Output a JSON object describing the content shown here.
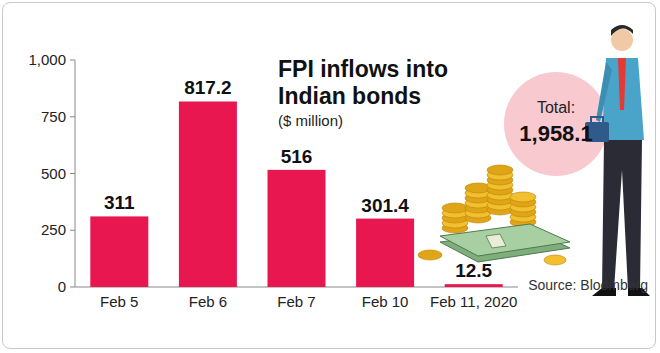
{
  "chart_data": {
    "type": "bar",
    "title": "FPI inflows into Indian bonds",
    "subtitle": "($ million)",
    "categories": [
      "Feb 5",
      "Feb 6",
      "Feb 7",
      "Feb 10",
      "Feb 11, 2020"
    ],
    "values": [
      311,
      817.2,
      516,
      301.4,
      12.5
    ],
    "color": "#e8174f",
    "ylim": [
      0,
      1000
    ],
    "yticks": [
      0,
      250,
      500,
      750,
      {
        "value": 1000,
        "label": "1,000"
      }
    ],
    "grid": false,
    "data_labels": true,
    "annotations": [
      "Total:",
      "1,958.1",
      "Source: Bloomberg"
    ]
  }
}
